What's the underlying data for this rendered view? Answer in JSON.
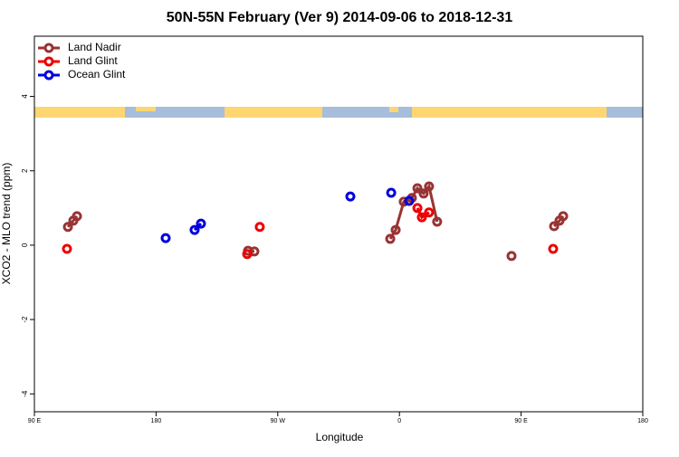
{
  "chart_data": {
    "type": "scatter",
    "title": "50N-55N February (Ver 9)   2014-09-06 to 2018-12-31",
    "x_label": "Longitude",
    "y_label": "XCO2 - MLO trend (ppm)",
    "xlim": [
      90,
      540
    ],
    "ylim": [
      -4.48,
      5.62
    ],
    "xticks": [
      {
        "value": 90,
        "label": "90 E"
      },
      180,
      {
        "value": 270,
        "label": "90 W"
      },
      {
        "value": 360,
        "label": "0"
      },
      {
        "value": 450,
        "label": "90 E"
      },
      {
        "value": 540,
        "label": "180"
      }
    ],
    "yticks": [
      -4,
      -2,
      0,
      2,
      4
    ],
    "legend": "top-left",
    "series": [
      {
        "name": "Land Nadir",
        "color": "#993333",
        "x": [
          114.8,
          118.8,
          121.5,
          248.0,
          252.7,
          353.2,
          357.2,
          363.2,
          369.2,
          373.3,
          377.9,
          381.9,
          387.9,
          442.9,
          474.4,
          478.4,
          481.1
        ],
        "values": [
          0.49,
          0.66,
          0.78,
          -0.15,
          -0.17,
          0.17,
          0.41,
          1.17,
          1.27,
          1.53,
          1.39,
          1.58,
          0.63,
          -0.29,
          0.51,
          0.66,
          0.78
        ]
      },
      {
        "name": "Land Glint",
        "color": "#ee0000",
        "x": [
          114.1,
          247.4,
          256.7,
          373.3,
          376.6,
          381.9,
          473.7
        ],
        "values": [
          -0.1,
          -0.24,
          0.49,
          1.0,
          0.75,
          0.88,
          -0.1
        ]
      },
      {
        "name": "Ocean Glint",
        "color": "#0000dd",
        "x": [
          187.1,
          208.5,
          213.2,
          323.7,
          353.9,
          367.2
        ],
        "values": [
          0.19,
          0.41,
          0.58,
          1.31,
          1.41,
          1.19
        ]
      }
    ]
  }
}
